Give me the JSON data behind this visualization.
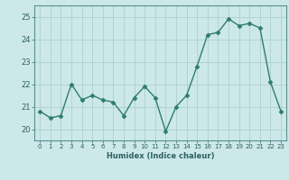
{
  "x": [
    0,
    1,
    2,
    3,
    4,
    5,
    6,
    7,
    8,
    9,
    10,
    11,
    12,
    13,
    14,
    15,
    16,
    17,
    18,
    19,
    20,
    21,
    22,
    23
  ],
  "y": [
    20.8,
    20.5,
    20.6,
    22.0,
    21.3,
    21.5,
    21.3,
    21.2,
    20.6,
    21.4,
    21.9,
    21.4,
    19.9,
    21.0,
    21.5,
    22.8,
    24.2,
    24.3,
    24.9,
    24.6,
    24.7,
    24.5,
    22.1,
    20.8
  ],
  "line_color": "#2e7d6e",
  "marker": "D",
  "marker_size": 2.5,
  "linewidth": 1.0,
  "bg_color": "#cce8e8",
  "grid_color": "#b0d0d0",
  "xlabel": "Humidex (Indice chaleur)",
  "ylim": [
    19.5,
    25.5
  ],
  "yticks": [
    20,
    21,
    22,
    23,
    24,
    25
  ],
  "xticks": [
    0,
    1,
    2,
    3,
    4,
    5,
    6,
    7,
    8,
    9,
    10,
    11,
    12,
    13,
    14,
    15,
    16,
    17,
    18,
    19,
    20,
    21,
    22,
    23
  ],
  "tick_color": "#2e6060",
  "label_color": "#2e6060",
  "axis_color": "#5a9090",
  "xlabel_fontsize": 6.0,
  "xtick_fontsize": 5.0,
  "ytick_fontsize": 6.0
}
